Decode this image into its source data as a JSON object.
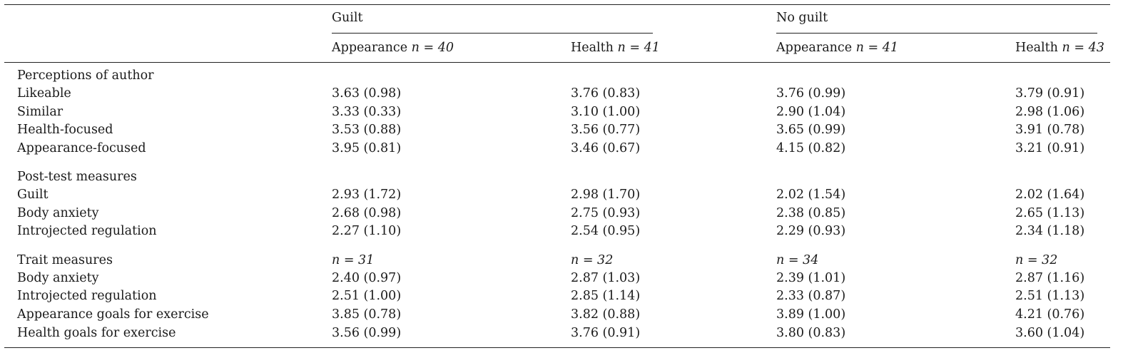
{
  "header": {
    "groups": [
      {
        "label": "Guilt"
      },
      {
        "label": "No guilt"
      }
    ],
    "columns": [
      {
        "label": "Appearance",
        "n": "n = 40"
      },
      {
        "label": "Health",
        "n": "n = 41"
      },
      {
        "label": "Appearance",
        "n": "n = 41"
      },
      {
        "label": "Health",
        "n": "n = 43"
      }
    ]
  },
  "sections": [
    {
      "title": "Perceptions of author",
      "title_values": [
        "",
        "",
        "",
        ""
      ],
      "rows": [
        {
          "label": "Likeable",
          "values": [
            "3.63 (0.98)",
            "3.76 (0.83)",
            "3.76 (0.99)",
            "3.79 (0.91)"
          ]
        },
        {
          "label": "Similar",
          "values": [
            "3.33 (0.33)",
            "3.10 (1.00)",
            "2.90 (1.04)",
            "2.98 (1.06)"
          ]
        },
        {
          "label": "Health-focused",
          "values": [
            "3.53 (0.88)",
            "3.56 (0.77)",
            "3.65 (0.99)",
            "3.91 (0.78)"
          ]
        },
        {
          "label": "Appearance-focused",
          "values": [
            "3.95 (0.81)",
            "3.46 (0.67)",
            "4.15 (0.82)",
            "3.21 (0.91)"
          ]
        }
      ]
    },
    {
      "title": "Post-test measures",
      "title_values": [
        "",
        "",
        "",
        ""
      ],
      "rows": [
        {
          "label": "Guilt",
          "values": [
            "2.93 (1.72)",
            "2.98 (1.70)",
            "2.02 (1.54)",
            "2.02 (1.64)"
          ]
        },
        {
          "label": "Body anxiety",
          "values": [
            "2.68 (0.98)",
            "2.75 (0.93)",
            "2.38 (0.85)",
            "2.65 (1.13)"
          ]
        },
        {
          "label": "Introjected regulation",
          "values": [
            "2.27 (1.10)",
            "2.54 (0.95)",
            "2.29 (0.93)",
            "2.34 (1.18)"
          ]
        }
      ]
    },
    {
      "title": "Trait measures",
      "title_values": [
        "n = 31",
        "n = 32",
        "n = 34",
        "n = 32"
      ],
      "rows": [
        {
          "label": "Body anxiety",
          "values": [
            "2.40 (0.97)",
            "2.87 (1.03)",
            "2.39 (1.01)",
            "2.87 (1.16)"
          ]
        },
        {
          "label": "Introjected regulation",
          "values": [
            "2.51 (1.00)",
            "2.85 (1.14)",
            "2.33 (0.87)",
            "2.51 (1.13)"
          ]
        },
        {
          "label": "Appearance goals for exercise",
          "values": [
            "3.85 (0.78)",
            "3.82 (0.88)",
            "3.89 (1.00)",
            "4.21 (0.76)"
          ]
        },
        {
          "label": "Health goals for exercise",
          "values": [
            "3.56 (0.99)",
            "3.76 (0.91)",
            "3.80 (0.83)",
            "3.60 (1.04)"
          ]
        }
      ]
    }
  ]
}
